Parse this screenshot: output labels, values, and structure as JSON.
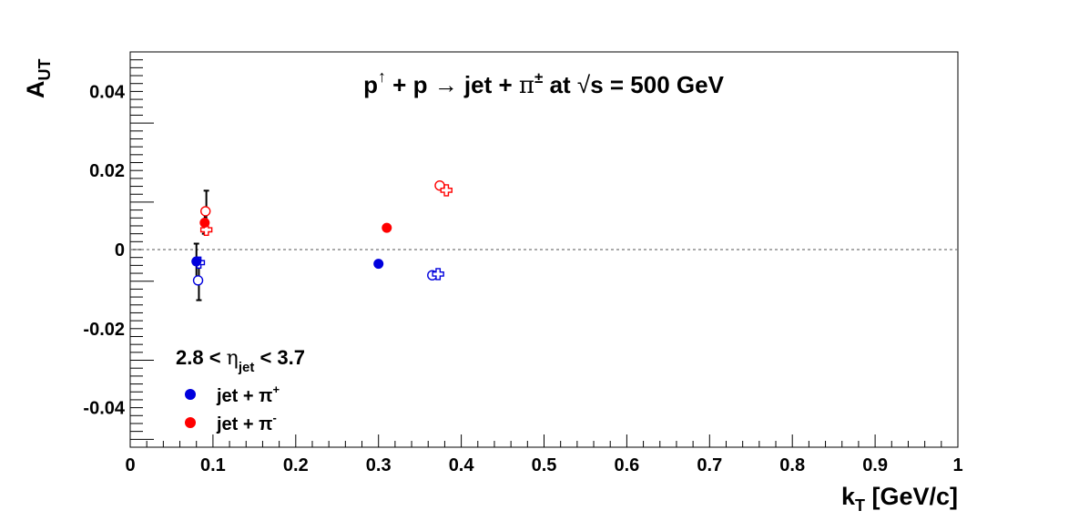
{
  "chart_data": {
    "type": "scatter",
    "title": {
      "p": "p",
      "up_arrow": "↑",
      "plus": " + p ",
      "arrow": "→",
      "jet": " jet + ",
      "pi": "π",
      "pi_sign": "±",
      "at": " at ",
      "sqrt": "√",
      "s_eq": "s = 500 GeV"
    },
    "xlabel": {
      "main": "k",
      "sub": "T",
      "rest": " [GeV/c]"
    },
    "ylabel": {
      "main": "A",
      "sub": "UT"
    },
    "xlim": [
      0,
      1
    ],
    "ylim": [
      -0.05,
      0.05
    ],
    "x_ticks": [
      {
        "value": 0,
        "label": "0"
      },
      {
        "value": 0.1,
        "label": "0.1"
      },
      {
        "value": 0.2,
        "label": "0.2"
      },
      {
        "value": 0.3,
        "label": "0.3"
      },
      {
        "value": 0.4,
        "label": "0.4"
      },
      {
        "value": 0.5,
        "label": "0.5"
      },
      {
        "value": 0.6,
        "label": "0.6"
      },
      {
        "value": 0.7,
        "label": "0.7"
      },
      {
        "value": 0.8,
        "label": "0.8"
      },
      {
        "value": 0.9,
        "label": "0.9"
      },
      {
        "value": 1.0,
        "label": "1"
      }
    ],
    "y_ticks": [
      {
        "value": -0.04,
        "label": "-0.04"
      },
      {
        "value": -0.02,
        "label": "-0.02"
      },
      {
        "value": 0,
        "label": "0"
      },
      {
        "value": 0.02,
        "label": "0.02"
      },
      {
        "value": 0.04,
        "label": "0.04"
      }
    ],
    "reference_line": {
      "y": 0,
      "style": "dotted",
      "color": "#777777"
    },
    "annotation": {
      "range": "2.8 < ",
      "eta": "η",
      "eta_sub": "jet",
      "upper": " < 3.7"
    },
    "legend": {
      "placement": "lower-left",
      "items": [
        {
          "label": "jet + π",
          "superscript": "+",
          "color": "#0000dd"
        },
        {
          "label": "jet + π",
          "superscript": "-",
          "color": "#ff0000"
        }
      ]
    },
    "series": [
      {
        "legend_index": 0,
        "color": "#0000dd",
        "measured": [
          {
            "x": 0.08,
            "y": -0.003,
            "err": 0.0045
          }
        ],
        "model_circle": [
          {
            "x": 0.082,
            "y": -0.0078
          },
          {
            "x": 0.365,
            "y": -0.0065
          }
        ],
        "model_cross": [
          {
            "x": 0.083,
            "y": -0.0033
          },
          {
            "x": 0.372,
            "y": -0.0062
          }
        ],
        "solid": [
          {
            "x": 0.3,
            "y": -0.0036
          }
        ]
      },
      {
        "legend_index": 1,
        "color": "#ff0000",
        "measured": [
          {
            "x": 0.09,
            "y": 0.0068,
            "err": 0.0028
          }
        ],
        "model_circle": [
          {
            "x": 0.091,
            "y": 0.0097
          },
          {
            "x": 0.374,
            "y": 0.0162
          }
        ],
        "model_cross": [
          {
            "x": 0.092,
            "y": 0.005
          },
          {
            "x": 0.382,
            "y": 0.015
          }
        ],
        "solid": [
          {
            "x": 0.31,
            "y": 0.0055
          }
        ]
      }
    ],
    "error_bars_extra": [
      {
        "x": 0.083,
        "y": -0.0078,
        "err": 0.005
      },
      {
        "x": 0.092,
        "y": 0.0097,
        "err": 0.0052
      }
    ]
  }
}
